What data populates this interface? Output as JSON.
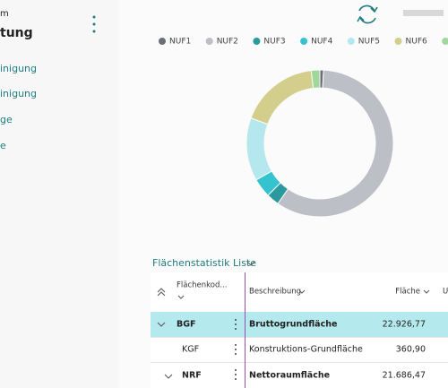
{
  "sidebar": {
    "title_top": "m",
    "title": "tung",
    "items": [
      "inigung",
      "inigung",
      "ge",
      "e"
    ]
  },
  "chart_data": {
    "type": "pie",
    "donut": true,
    "categories": [
      "NUF1",
      "NUF2",
      "NUF3",
      "NUF4",
      "NUF5",
      "NUF6",
      null
    ],
    "values": [
      0.8,
      58.9,
      2.8,
      4.2,
      13.9,
      17.5,
      1.9
    ],
    "colors": [
      "#6b6f7a",
      "#bcbfc6",
      "#2b9a9f",
      "#35c4cf",
      "#b5e8ee",
      "#d4ce8c",
      "#9fd89a"
    ]
  },
  "table": {
    "title": "Flächenstatistik Liste",
    "columns": [
      "Flächenkod...",
      "Beschreibung",
      "Fläche",
      "U"
    ],
    "rows": [
      [
        "BGF",
        "Bruttogrundfläche",
        "22.926,77"
      ],
      [
        "KGF",
        "Konstruktions-Grundfläche",
        "360,90"
      ],
      [
        "NRF",
        "Nettoraumfläche",
        "21.686,47"
      ]
    ]
  }
}
